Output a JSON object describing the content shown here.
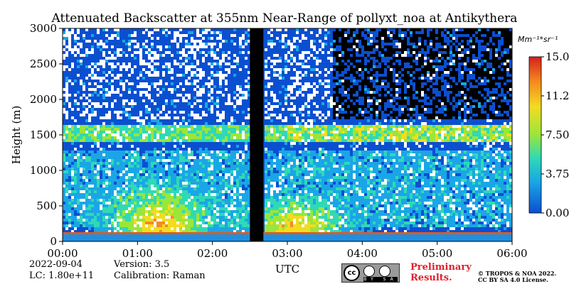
{
  "chart_data": {
    "type": "heatmap",
    "title": "Attenuated Backscatter at 355nm Near-Range of pollyxt_noa at Antikythera",
    "xlabel": "UTC",
    "ylabel": "Height (m)",
    "x_ticks": [
      "00:00",
      "01:00",
      "02:00",
      "03:00",
      "04:00",
      "05:00",
      "06:00"
    ],
    "y_ticks": [
      "0",
      "500",
      "1000",
      "1500",
      "2000",
      "2500",
      "3000"
    ],
    "xlim_hours": [
      0,
      6
    ],
    "ylim": [
      0,
      3000
    ],
    "colorbar": {
      "unit": "Mm⁻¹*sr⁻¹",
      "range": [
        0.0,
        15.0
      ],
      "tick_labels": [
        "15.00",
        "11.25",
        "7.50",
        "3.75",
        "0.00"
      ],
      "colors": [
        "#0b4fd1",
        "#1aa6e6",
        "#2fd9b6",
        "#9ae63a",
        "#f2dc20",
        "#f58a1f",
        "#d61f1f"
      ]
    },
    "data_gap_hours": [
      2.5,
      2.68
    ],
    "layers": [
      {
        "name": "surface",
        "from_m": 0,
        "to_m": 100,
        "level": 0.15
      },
      {
        "name": "aerosol_top",
        "from_m": 1400,
        "to_m": 1650,
        "level": 0.85
      },
      {
        "name": "boundary_layer_plume_1",
        "center_hour": 1.3,
        "height_m": 900
      },
      {
        "name": "boundary_layer_plume_2",
        "center_hour": 3.1,
        "height_m": 700
      }
    ],
    "background_level": 0.05
  },
  "meta": {
    "date": "2022-09-04",
    "lc": "LC: 1.80e+11",
    "version": "Version: 3.5",
    "calibration": "Calibration: Raman"
  },
  "footer": {
    "preliminary_line1": "Preliminary",
    "preliminary_line2": "Results.",
    "copyright_line1": "© TROPOS & NOA 2022.",
    "copyright_line2": "CC BY SA 4.0 License.",
    "badge_text": "BY SA"
  }
}
